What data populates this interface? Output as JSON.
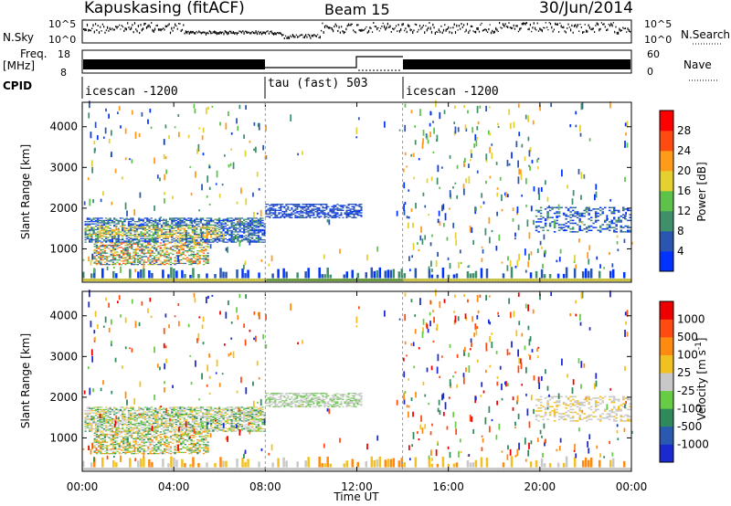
{
  "header": {
    "station": "Kapuskasing (fitACF)",
    "beam": "Beam 15",
    "date": "30/Jun/2014"
  },
  "top_panels": {
    "nsky": {
      "left_label": "N.Sky",
      "left_ticks": [
        "10^5",
        "10^0"
      ],
      "right_label": "N.Search",
      "right_ticks": [
        "10^5",
        "10^0"
      ]
    },
    "freq": {
      "left_label_1": "Freq.",
      "left_label_2": "[MHz]",
      "left_ticks": [
        "18",
        "8"
      ],
      "right_label": "Nave",
      "right_ticks": [
        "60",
        "0"
      ]
    },
    "cpid": {
      "label": "CPID",
      "segments": [
        {
          "start": "00:00",
          "end": "08:00",
          "label": "icescan -1200"
        },
        {
          "start": "08:00",
          "end": "14:00",
          "label": "tau (fast) 503"
        },
        {
          "start": "14:00",
          "end": "24:00",
          "label": "icescan -1200"
        }
      ]
    }
  },
  "chart_data": [
    {
      "type": "heatmap",
      "name": "power",
      "ylabel": "Slant Range [km]",
      "xlabel": "",
      "x_unit": "hours UT",
      "xlim": [
        0,
        24
      ],
      "ylim": [
        180,
        4600
      ],
      "yticks": [
        1000,
        2000,
        3000,
        4000
      ],
      "colorbar": {
        "label": "Power [dB]",
        "ticks": [
          "4",
          "8",
          "12",
          "16",
          "20",
          "24",
          "28"
        ],
        "colors": [
          "#0033ff",
          "#2a55b0",
          "#3f8f6a",
          "#5cc24a",
          "#e6d030",
          "#ff9a1a",
          "#ff4a10",
          "#ff0000"
        ]
      },
      "regions": [
        {
          "x": [
            0.1,
            8.0
          ],
          "y": [
            1150,
            1750
          ],
          "level": "high",
          "description": "dense echoes"
        },
        {
          "x": [
            0.5,
            5.5
          ],
          "y": [
            600,
            1150
          ],
          "level": "medium"
        },
        {
          "x": [
            8.0,
            12.2
          ],
          "y": [
            1750,
            2100
          ],
          "level": "low"
        },
        {
          "x": [
            19.8,
            24.0
          ],
          "y": [
            1400,
            2000
          ],
          "level": "low"
        },
        {
          "x": [
            0,
            24
          ],
          "y": [
            180,
            350
          ],
          "level": "ground"
        }
      ]
    },
    {
      "type": "heatmap",
      "name": "velocity",
      "ylabel": "Slant Range [km]",
      "xlabel": "Time UT",
      "x_unit": "hours UT",
      "xlim": [
        0,
        24
      ],
      "ylim": [
        180,
        4600
      ],
      "yticks": [
        1000,
        2000,
        3000,
        4000
      ],
      "xticks": [
        "00:00",
        "04:00",
        "08:00",
        "12:00",
        "16:00",
        "20:00",
        "00:00"
      ],
      "colorbar": {
        "label": "Velocity [m s^-1]",
        "ticks": [
          "1000",
          "500",
          "100",
          "25",
          "-25",
          "-100",
          "-500",
          "-1000"
        ],
        "colors": [
          "#1a2ad0",
          "#2a5ab0",
          "#2e8a5a",
          "#66cc44",
          "#c8c8c8",
          "#f2c020",
          "#ff8a10",
          "#ff4a10",
          "#ee0000"
        ]
      }
    }
  ]
}
